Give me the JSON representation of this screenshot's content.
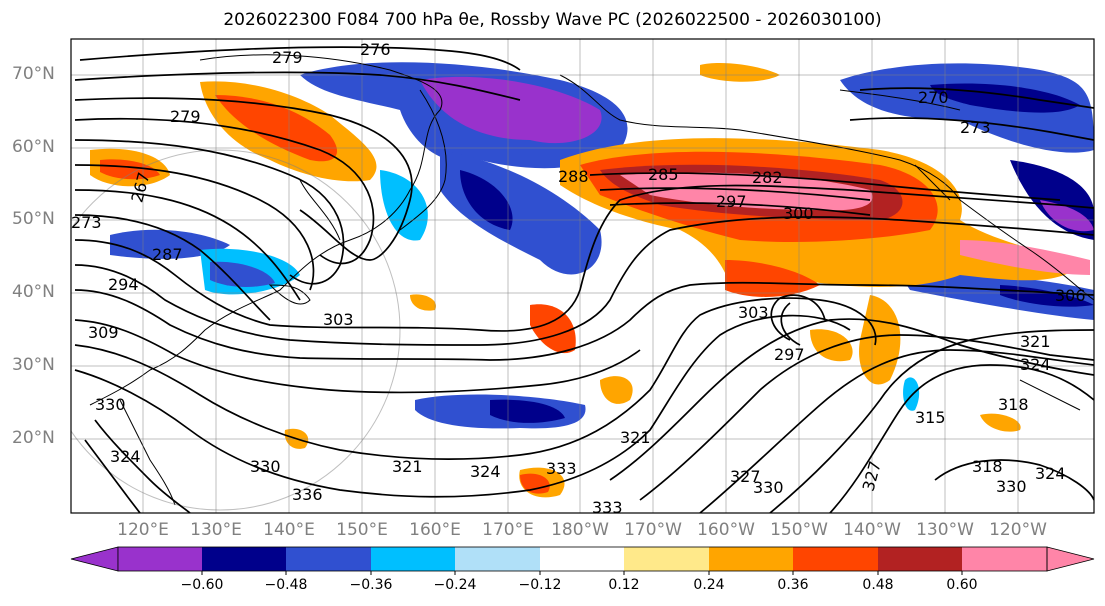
{
  "title": "2026022300 F084 700 hPa θe, Rossby Wave PC (2026022500 - 2026030100)",
  "map": {
    "lat_labels": [
      "70°N",
      "60°N",
      "50°N",
      "40°N",
      "30°N",
      "20°N"
    ],
    "lon_labels": [
      "120°E",
      "130°E",
      "140°E",
      "150°E",
      "160°E",
      "170°E",
      "180°W",
      "170°W",
      "160°W",
      "150°W",
      "140°W",
      "130°W",
      "120°W"
    ],
    "contour_labels": [
      "276",
      "279",
      "279",
      "270",
      "273",
      "267",
      "273",
      "288",
      "285",
      "282",
      "297",
      "300",
      "287",
      "294",
      "306",
      "309",
      "303",
      "303",
      "297",
      "321",
      "324",
      "315",
      "318",
      "330",
      "324",
      "330",
      "327",
      "321",
      "324",
      "333",
      "336",
      "333",
      "330",
      "327",
      "324",
      "321",
      "318",
      "330"
    ]
  },
  "colorbar": {
    "colors": [
      "#9932cc",
      "#00008b",
      "#3050d0",
      "#00bfff",
      "#b0e0f8",
      "#ffffff",
      "#ffe98a",
      "#ffa500",
      "#ff4500",
      "#b22222",
      "#ff85a8"
    ],
    "tick_labels": [
      "−0.60",
      "−0.48",
      "−0.36",
      "−0.24",
      "−0.12",
      "0.12",
      "0.24",
      "0.36",
      "0.48",
      "0.60"
    ]
  }
}
